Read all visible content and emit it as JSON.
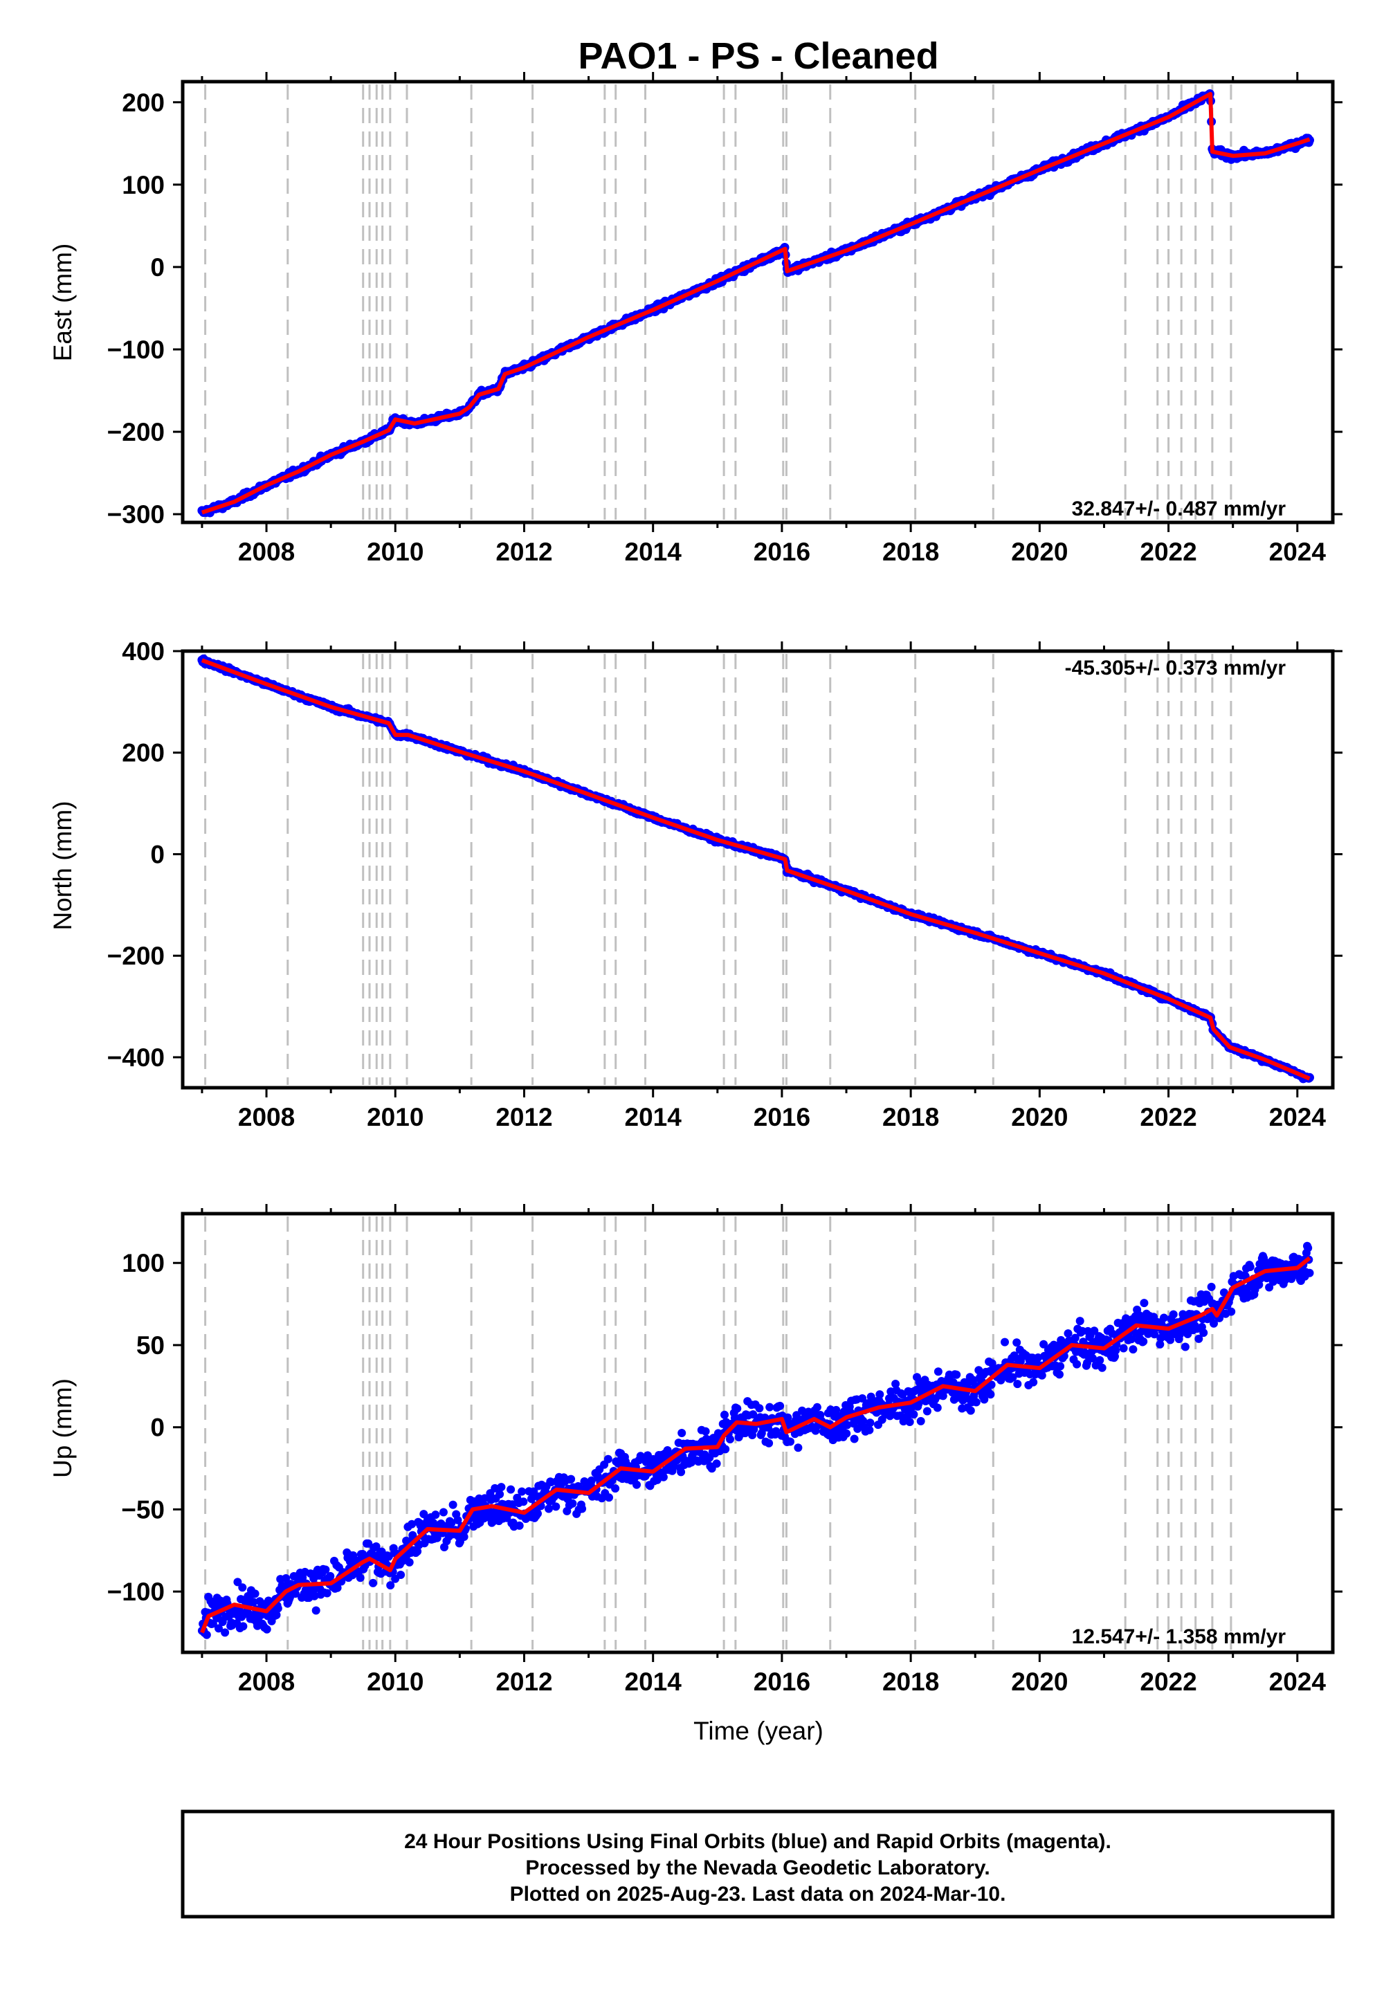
{
  "title": "PAO1  - PS - Cleaned",
  "footer": {
    "line1": "24 Hour Positions Using Final Orbits (blue) and Rapid Orbits (magenta).",
    "line2": "Processed by the Nevada Geodetic Laboratory.",
    "line3": "Plotted on 2025-Aug-23. Last data on 2024-Mar-10."
  },
  "colors": {
    "data_points": "#0000ff",
    "model_line": "#ff0000",
    "event_lines": "#c0c0c0"
  },
  "event_years": [
    2007.05,
    2008.33,
    2009.5,
    2009.6,
    2009.71,
    2009.8,
    2009.92,
    2010.18,
    2011.18,
    2012.13,
    2013.25,
    2013.42,
    2013.88,
    2015.1,
    2015.28,
    2016.02,
    2016.07,
    2016.75,
    2018.07,
    2019.28,
    2021.33,
    2021.83,
    2022.0,
    2022.2,
    2022.42,
    2022.68,
    2022.97
  ],
  "chart_data": [
    {
      "type": "scatter",
      "id": "east",
      "title": "PAO1  - PS - Cleaned",
      "xlabel": "",
      "ylabel": "East (mm)",
      "xlim": [
        2006.7,
        2024.55
      ],
      "ylim": [
        -310,
        225
      ],
      "xticks": [
        "2008",
        "2010",
        "2012",
        "2014",
        "2016",
        "2018",
        "2020",
        "2022",
        "2024"
      ],
      "yticks": [
        "−300",
        "−200",
        "−100",
        "0",
        "100",
        "200"
      ],
      "ytick_values": [
        -300,
        -200,
        -100,
        0,
        100,
        200
      ],
      "rate_label": "32.847+/- 0.487 mm/yr",
      "rate_position": "bottom-right",
      "grid": false,
      "series": [
        {
          "kind": "points",
          "x": [
            2007.0,
            2007.5,
            2008.0,
            2008.5,
            2009.0,
            2009.5,
            2009.9,
            2010.0,
            2010.3,
            2011.0,
            2011.15,
            2011.3,
            2011.6,
            2011.7,
            2012.0,
            2013.0,
            2014.0,
            2015.0,
            2016.05,
            2016.08,
            2017.0,
            2018.0,
            2019.0,
            2020.0,
            2021.0,
            2022.0,
            2022.65,
            2022.68,
            2023.0,
            2023.5,
            2024.0,
            2024.19
          ],
          "y": [
            -298,
            -285,
            -265,
            -248,
            -228,
            -212,
            -198,
            -185,
            -190,
            -178,
            -170,
            -155,
            -148,
            -130,
            -122,
            -85,
            -52,
            -17,
            22,
            -5,
            20,
            52,
            85,
            118,
            150,
            182,
            210,
            140,
            135,
            138,
            150,
            155
          ]
        },
        {
          "kind": "line",
          "name": "model",
          "x": [
            2007.0,
            2007.5,
            2008.0,
            2008.5,
            2009.0,
            2009.5,
            2009.9,
            2010.0,
            2010.3,
            2011.0,
            2011.15,
            2011.3,
            2011.6,
            2011.7,
            2012.0,
            2013.0,
            2014.0,
            2015.0,
            2016.05,
            2016.08,
            2017.0,
            2018.0,
            2019.0,
            2020.0,
            2021.0,
            2022.0,
            2022.65,
            2022.68,
            2023.0,
            2023.5,
            2024.0,
            2024.19
          ],
          "y": [
            -298,
            -285,
            -265,
            -248,
            -228,
            -212,
            -198,
            -185,
            -190,
            -178,
            -170,
            -155,
            -148,
            -130,
            -122,
            -85,
            -52,
            -17,
            22,
            -5,
            20,
            52,
            85,
            118,
            150,
            182,
            210,
            140,
            135,
            138,
            150,
            155
          ]
        }
      ]
    },
    {
      "type": "scatter",
      "id": "north",
      "xlabel": "",
      "ylabel": "North (mm)",
      "xlim": [
        2006.7,
        2024.55
      ],
      "ylim": [
        -460,
        400
      ],
      "xticks": [
        "2008",
        "2010",
        "2012",
        "2014",
        "2016",
        "2018",
        "2020",
        "2022",
        "2024"
      ],
      "yticks": [
        "−400",
        "−200",
        "0",
        "200",
        "400"
      ],
      "ytick_values": [
        -400,
        -200,
        0,
        200,
        400
      ],
      "rate_label": "-45.305+/- 0.373 mm/yr",
      "rate_position": "top-right",
      "grid": false,
      "series": [
        {
          "kind": "points",
          "x": [
            2007.0,
            2008.0,
            2009.0,
            2009.9,
            2010.0,
            2010.2,
            2011.0,
            2012.0,
            2013.0,
            2014.0,
            2015.0,
            2016.05,
            2016.08,
            2017.0,
            2018.0,
            2019.0,
            2020.0,
            2021.0,
            2022.0,
            2022.65,
            2022.7,
            2022.95,
            2023.5,
            2024.19
          ],
          "y": [
            382,
            335,
            290,
            258,
            235,
            235,
            202,
            163,
            118,
            72,
            28,
            -10,
            -32,
            -72,
            -118,
            -155,
            -195,
            -235,
            -285,
            -322,
            -345,
            -380,
            -405,
            -442
          ]
        },
        {
          "kind": "line",
          "name": "model",
          "x": [
            2007.0,
            2008.0,
            2009.0,
            2009.9,
            2010.0,
            2010.2,
            2011.0,
            2012.0,
            2013.0,
            2014.0,
            2015.0,
            2016.05,
            2016.08,
            2017.0,
            2018.0,
            2019.0,
            2020.0,
            2021.0,
            2022.0,
            2022.65,
            2022.7,
            2022.95,
            2023.5,
            2024.19
          ],
          "y": [
            382,
            335,
            290,
            258,
            235,
            235,
            202,
            163,
            118,
            72,
            28,
            -10,
            -32,
            -72,
            -118,
            -155,
            -195,
            -235,
            -285,
            -322,
            -345,
            -380,
            -405,
            -442
          ]
        }
      ]
    },
    {
      "type": "scatter",
      "id": "up",
      "xlabel": "Time (year)",
      "ylabel": "Up (mm)",
      "xlim": [
        2006.7,
        2024.55
      ],
      "ylim": [
        -137,
        130
      ],
      "xticks": [
        "2008",
        "2010",
        "2012",
        "2014",
        "2016",
        "2018",
        "2020",
        "2022",
        "2024"
      ],
      "yticks": [
        "−100",
        "−50",
        "0",
        "50",
        "100"
      ],
      "ytick_values": [
        -100,
        -50,
        0,
        50,
        100
      ],
      "rate_label": "12.547+/- 1.358 mm/yr",
      "rate_position": "bottom-right",
      "grid": false,
      "series": [
        {
          "kind": "points",
          "x": [
            2007.0,
            2007.1,
            2007.5,
            2008.0,
            2008.3,
            2008.5,
            2009.0,
            2009.5,
            2009.6,
            2009.92,
            2010.0,
            2010.5,
            2011.0,
            2011.2,
            2011.5,
            2012.0,
            2012.5,
            2013.0,
            2013.5,
            2014.0,
            2014.5,
            2015.0,
            2015.1,
            2015.3,
            2015.6,
            2016.0,
            2016.07,
            2016.5,
            2016.75,
            2017.0,
            2017.5,
            2018.0,
            2018.5,
            2019.0,
            2019.5,
            2020.0,
            2020.5,
            2021.0,
            2021.5,
            2022.0,
            2022.5,
            2022.68,
            2022.75,
            2023.0,
            2023.5,
            2024.0,
            2024.19
          ],
          "y": [
            -125,
            -115,
            -108,
            -112,
            -100,
            -96,
            -95,
            -82,
            -80,
            -87,
            -80,
            -62,
            -63,
            -50,
            -48,
            -52,
            -38,
            -40,
            -25,
            -27,
            -13,
            -12,
            -5,
            3,
            2,
            5,
            -3,
            5,
            0,
            6,
            12,
            15,
            25,
            22,
            38,
            36,
            50,
            48,
            62,
            60,
            68,
            72,
            68,
            85,
            95,
            97,
            103
          ]
        },
        {
          "kind": "line",
          "name": "model",
          "x": [
            2007.0,
            2007.1,
            2007.5,
            2008.0,
            2008.3,
            2008.5,
            2009.0,
            2009.5,
            2009.6,
            2009.92,
            2010.0,
            2010.5,
            2011.0,
            2011.2,
            2011.5,
            2012.0,
            2012.5,
            2013.0,
            2013.5,
            2014.0,
            2014.5,
            2015.0,
            2015.1,
            2015.3,
            2015.6,
            2016.0,
            2016.07,
            2016.5,
            2016.75,
            2017.0,
            2017.5,
            2018.0,
            2018.5,
            2019.0,
            2019.5,
            2020.0,
            2020.5,
            2021.0,
            2021.5,
            2022.0,
            2022.5,
            2022.68,
            2022.75,
            2023.0,
            2023.5,
            2024.0,
            2024.19
          ],
          "y": [
            -125,
            -115,
            -108,
            -112,
            -100,
            -96,
            -95,
            -82,
            -80,
            -87,
            -80,
            -62,
            -63,
            -50,
            -48,
            -52,
            -38,
            -40,
            -25,
            -27,
            -13,
            -12,
            -5,
            3,
            2,
            5,
            -3,
            5,
            0,
            6,
            12,
            15,
            25,
            22,
            38,
            36,
            50,
            48,
            62,
            60,
            68,
            72,
            68,
            85,
            95,
            97,
            103
          ]
        }
      ]
    }
  ]
}
